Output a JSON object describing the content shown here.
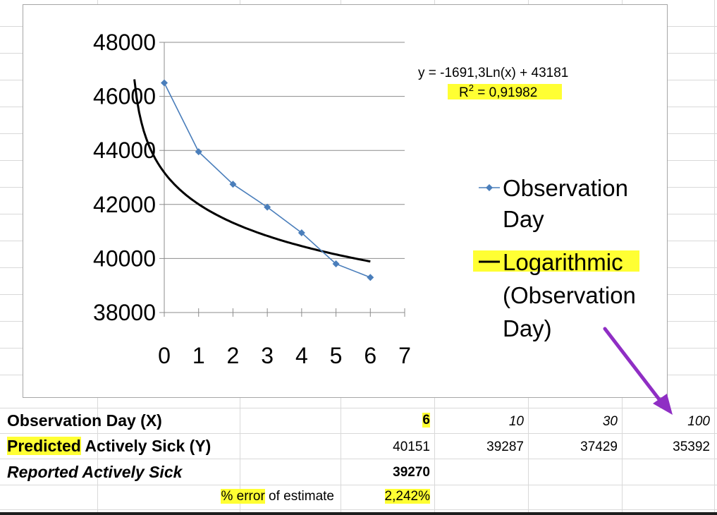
{
  "colors": {
    "series": "#4a7ebb",
    "trend": "#000000",
    "highlight": "#ffff33",
    "arrow": "#8f2ec4"
  },
  "chart_data": {
    "type": "line",
    "series": [
      {
        "name": "Observation Day",
        "x": [
          0,
          1,
          2,
          3,
          4,
          5,
          6
        ],
        "y": [
          46500,
          43950,
          42750,
          41900,
          40950,
          39800,
          39300
        ]
      }
    ],
    "trendline": {
      "name": "Logarithmic (Observation Day)",
      "type": "logarithmic",
      "equation": "y = -1691,3Ln(x) + 43181",
      "r2_label": "R",
      "r2_sup": "2",
      "r2_value": " = 0,91982"
    },
    "xlim": [
      0,
      7
    ],
    "ylim": [
      38000,
      48000
    ],
    "x_ticks": [
      "0",
      "1",
      "2",
      "3",
      "4",
      "5",
      "6",
      "7"
    ],
    "y_ticks": [
      "38000",
      "40000",
      "42000",
      "44000",
      "46000",
      "48000"
    ],
    "legend": [
      {
        "lines": [
          "Observation",
          "Day"
        ]
      },
      {
        "lines": [
          "Logarithmic",
          "(Observation",
          "Day)"
        ]
      }
    ],
    "legend_placement": "right",
    "grid": true
  },
  "table": {
    "row1": {
      "label": "Observation Day (X)",
      "v1": "6",
      "v2": "10",
      "v3": "30",
      "v4": "100"
    },
    "row2": {
      "label_a": "Predicted",
      "label_b": " Actively Sick (Y)",
      "v1": "40151",
      "v2": "39287",
      "v3": "37429",
      "v4": "35392"
    },
    "row3": {
      "label": "Reported Actively Sick",
      "v1": "39270"
    },
    "row4": {
      "label_a": "% error",
      "label_b": " of estimate",
      "v1": "2,242%"
    }
  }
}
